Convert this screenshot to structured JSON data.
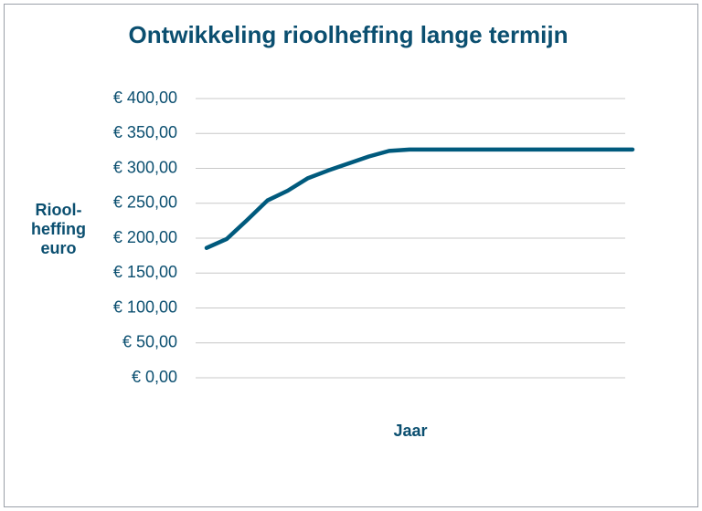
{
  "chart_data": {
    "type": "line",
    "title": "Ontwikkeling rioolheffing lange termijn",
    "ylabel": [
      "Riool-",
      "heffing",
      "euro"
    ],
    "xlabel": "Jaar",
    "categories": [
      null,
      null,
      null,
      null,
      null,
      null,
      null,
      null,
      null,
      null,
      null,
      null,
      null,
      null,
      null,
      null,
      null,
      null,
      null,
      null,
      null,
      null
    ],
    "series": [
      {
        "color": "#005a7d",
        "values": [
          186,
          199,
          226,
          254,
          268,
          286,
          297,
          307,
          317,
          325,
          327,
          327,
          327,
          327,
          327,
          327,
          327,
          327,
          327,
          327,
          327,
          327
        ]
      }
    ],
    "ylim": [
      0,
      400
    ],
    "yticks": [
      {
        "value": 0,
        "label": "€ 0,00"
      },
      {
        "value": 50,
        "label": "€ 50,00"
      },
      {
        "value": 100,
        "label": "€ 100,00"
      },
      {
        "value": 150,
        "label": "€ 150,00"
      },
      {
        "value": 200,
        "label": "€ 200,00"
      },
      {
        "value": 250,
        "label": "€ 250,00"
      },
      {
        "value": 300,
        "label": "€ 300,00"
      },
      {
        "value": 350,
        "label": "€ 350,00"
      },
      {
        "value": 400,
        "label": "€ 400,00"
      }
    ],
    "grid": true
  }
}
